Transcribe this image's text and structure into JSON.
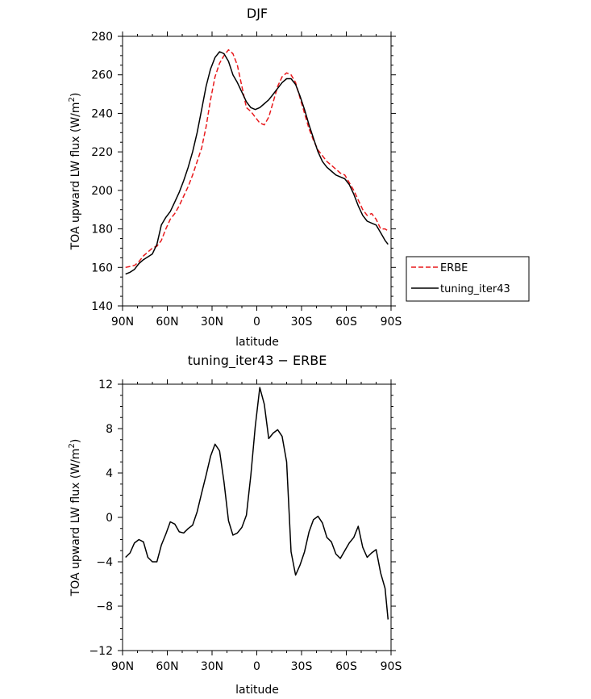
{
  "chart_data": [
    {
      "type": "line",
      "title": "DJF",
      "xlabel": "latitude",
      "ylabel": "TOA upward LW flux (W/m",
      "ylabel_sup": "2",
      "ylabel_end": ")",
      "xlim": [
        -90,
        90
      ],
      "ylim": [
        140,
        280
      ],
      "xticks": [
        -90,
        -60,
        -30,
        0,
        30,
        60,
        90
      ],
      "xtick_labels": [
        "90N",
        "60N",
        "30N",
        "0",
        "30S",
        "60S",
        "90S"
      ],
      "yticks": [
        140,
        160,
        180,
        200,
        220,
        240,
        260,
        280
      ],
      "ytick_labels": [
        "140",
        "160",
        "180",
        "200",
        "220",
        "240",
        "260",
        "280"
      ],
      "legend_position": "right",
      "series": [
        {
          "name": "ERBE",
          "color": "#e8191c",
          "dash": "6,3",
          "x": [
            -88,
            -85,
            -82,
            -79,
            -76,
            -73,
            -70,
            -67,
            -64,
            -61,
            -58,
            -55,
            -52,
            -49,
            -46,
            -43,
            -40,
            -37,
            -34,
            -31,
            -28,
            -25,
            -22,
            -19,
            -16,
            -13,
            -10,
            -7,
            -4,
            -1,
            2,
            5,
            8,
            11,
            14,
            17,
            20,
            23,
            26,
            29,
            32,
            35,
            38,
            41,
            44,
            47,
            50,
            53,
            56,
            59,
            62,
            65,
            68,
            71,
            74,
            77,
            80,
            83,
            86,
            88
          ],
          "values": [
            160,
            160.5,
            161,
            163,
            166,
            168,
            170,
            171,
            174,
            180,
            185,
            188,
            192,
            197,
            202,
            208,
            215,
            222,
            233,
            247,
            259,
            266,
            270,
            273,
            271,
            265,
            254,
            243,
            241,
            238,
            235,
            234,
            238,
            246,
            254,
            259,
            261,
            260,
            256,
            248,
            240,
            232,
            226,
            221,
            218,
            215,
            213,
            211,
            209,
            208,
            204,
            200,
            195,
            190,
            187,
            188,
            185,
            180,
            180,
            179
          ]
        },
        {
          "name": "tuning_iter43",
          "color": "#000000",
          "dash": "",
          "x": [
            -88,
            -85,
            -82,
            -79,
            -76,
            -73,
            -70,
            -67,
            -64,
            -61,
            -58,
            -55,
            -52,
            -49,
            -46,
            -43,
            -40,
            -37,
            -34,
            -31,
            -28,
            -25,
            -22,
            -19,
            -16,
            -13,
            -10,
            -7,
            -4,
            -1,
            2,
            5,
            8,
            11,
            14,
            17,
            20,
            23,
            26,
            29,
            32,
            35,
            38,
            41,
            44,
            47,
            50,
            53,
            56,
            59,
            62,
            65,
            68,
            71,
            74,
            77,
            80,
            83,
            86,
            88
          ],
          "values": [
            156.5,
            157.5,
            159,
            162,
            164,
            165.5,
            167,
            172,
            182,
            186,
            189,
            194,
            199,
            205,
            212,
            220,
            230,
            242,
            254,
            263,
            269,
            272,
            271,
            267,
            260,
            256,
            251,
            246,
            243,
            242,
            243,
            245,
            247,
            250,
            253,
            256,
            258,
            258,
            255,
            249,
            242,
            234,
            227,
            220,
            215,
            212,
            210,
            208,
            207,
            206,
            203,
            198,
            192,
            187,
            184,
            183,
            182,
            178,
            174,
            172
          ]
        }
      ]
    },
    {
      "type": "line",
      "title": "tuning_iter43 − ERBE",
      "xlabel": "latitude",
      "ylabel": "TOA upward LW flux (W/m",
      "ylabel_sup": "2",
      "ylabel_end": ")",
      "xlim": [
        -90,
        90
      ],
      "ylim": [
        -12,
        12
      ],
      "xticks": [
        -90,
        -60,
        -30,
        0,
        30,
        60,
        90
      ],
      "xtick_labels": [
        "90N",
        "60N",
        "30N",
        "0",
        "30S",
        "60S",
        "90S"
      ],
      "yticks": [
        -12,
        -8,
        -4,
        0,
        4,
        8,
        12
      ],
      "ytick_labels": [
        "−12",
        "−8",
        "−4",
        "0",
        "4",
        "8",
        "12"
      ],
      "series": [
        {
          "name": "",
          "color": "#000000",
          "dash": "",
          "x": [
            -88,
            -85,
            -82,
            -79,
            -76,
            -73,
            -70,
            -67,
            -64,
            -61,
            -58,
            -55,
            -52,
            -49,
            -46,
            -43,
            -40,
            -37,
            -34,
            -31,
            -28,
            -25,
            -22,
            -19,
            -16,
            -13,
            -10,
            -7,
            -4,
            -1,
            2,
            5,
            8,
            11,
            14,
            17,
            20,
            23,
            26,
            29,
            32,
            35,
            38,
            41,
            44,
            47,
            50,
            53,
            56,
            59,
            62,
            65,
            68,
            71,
            74,
            77,
            80,
            83,
            86,
            88
          ],
          "values": [
            -3.6,
            -3.2,
            -2.3,
            -2,
            -2.2,
            -3.6,
            -4,
            -4,
            -2.5,
            -1.5,
            -0.4,
            -0.6,
            -1.3,
            -1.4,
            -1,
            -0.7,
            0.5,
            2.2,
            3.8,
            5.5,
            6.6,
            6,
            3.2,
            -0.3,
            -1.6,
            -1.4,
            -0.9,
            0.2,
            3.8,
            8.2,
            11.7,
            10.2,
            7.1,
            7.6,
            7.9,
            7.3,
            5,
            -3.1,
            -5.2,
            -4.3,
            -3.1,
            -1.3,
            -0.2,
            0.1,
            -0.5,
            -1.8,
            -2.2,
            -3.3,
            -3.7,
            -3,
            -2.3,
            -1.8,
            -0.8,
            -2.7,
            -3.6,
            -3.2,
            -2.9,
            -5,
            -6.4,
            -9.2
          ]
        }
      ]
    }
  ]
}
